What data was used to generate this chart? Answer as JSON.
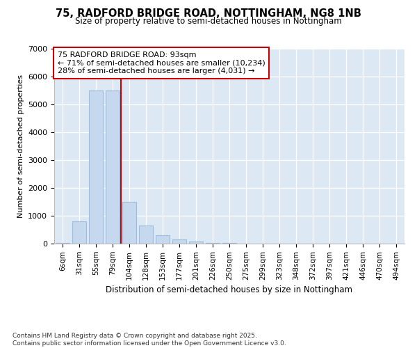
{
  "title1": "75, RADFORD BRIDGE ROAD, NOTTINGHAM, NG8 1NB",
  "title2": "Size of property relative to semi-detached houses in Nottingham",
  "xlabel": "Distribution of semi-detached houses by size in Nottingham",
  "ylabel": "Number of semi-detached properties",
  "categories": [
    "6sqm",
    "31sqm",
    "55sqm",
    "79sqm",
    "104sqm",
    "128sqm",
    "153sqm",
    "177sqm",
    "201sqm",
    "226sqm",
    "250sqm",
    "275sqm",
    "299sqm",
    "323sqm",
    "348sqm",
    "372sqm",
    "397sqm",
    "421sqm",
    "446sqm",
    "470sqm",
    "494sqm"
  ],
  "values": [
    20,
    800,
    5500,
    5500,
    1500,
    650,
    300,
    150,
    75,
    30,
    25,
    0,
    0,
    0,
    0,
    0,
    0,
    0,
    0,
    0,
    0
  ],
  "bar_color": "#c5d8ed",
  "bar_edge_color": "#a0bcd8",
  "vline_x": 3.5,
  "vline_color": "#cc0000",
  "annotation_title": "75 RADFORD BRIDGE ROAD: 93sqm",
  "annotation_line1": "← 71% of semi-detached houses are smaller (10,234)",
  "annotation_line2": "28% of semi-detached houses are larger (4,031) →",
  "annotation_box_edgecolor": "#cc0000",
  "ylim": [
    0,
    7000
  ],
  "yticks": [
    0,
    1000,
    2000,
    3000,
    4000,
    5000,
    6000,
    7000
  ],
  "background_color": "#dce8f4",
  "grid_color": "#ffffff",
  "footer1": "Contains HM Land Registry data © Crown copyright and database right 2025.",
  "footer2": "Contains public sector information licensed under the Open Government Licence v3.0."
}
